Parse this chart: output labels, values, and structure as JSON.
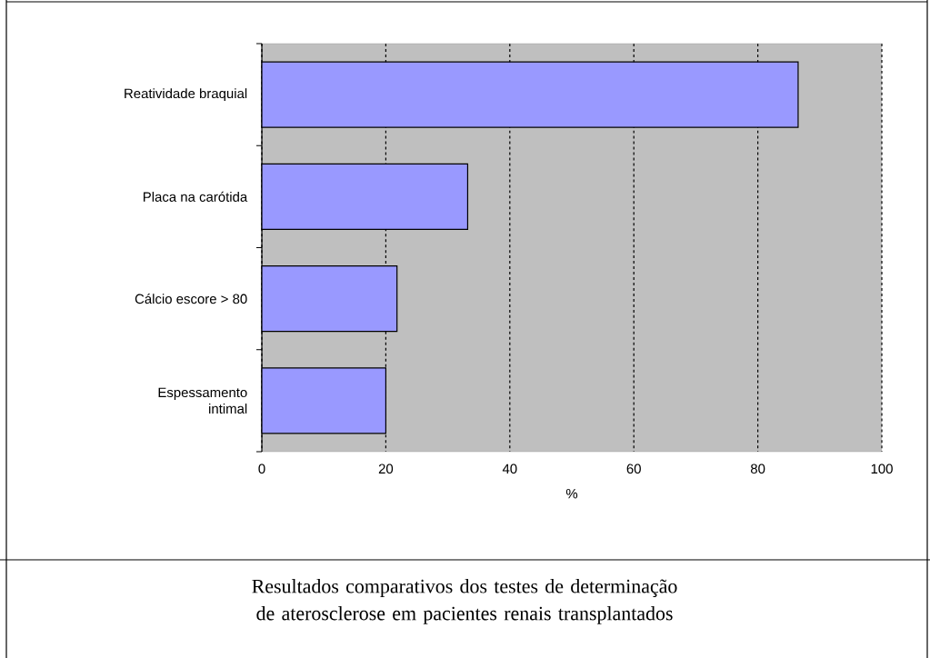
{
  "chart_data": {
    "type": "bar",
    "orientation": "horizontal",
    "categories": [
      "Reatividade braquial",
      "Placa na carótida",
      "Cálcio escore > 80",
      "Espessamento intimal"
    ],
    "values": [
      86.5,
      33.2,
      21.8,
      20.0
    ],
    "color": "#9999ff",
    "xlim": [
      0,
      100
    ],
    "xticks": [
      0,
      20,
      40,
      60,
      80,
      100
    ],
    "xlabel": "%",
    "grid": "x",
    "annotations": [
      "Resultados comparativos dos testes de determinação de aterosclerose em pacientes renais transplantados"
    ]
  }
}
